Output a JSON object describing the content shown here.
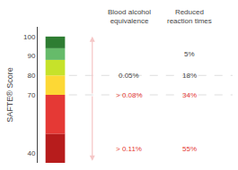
{
  "chart_data": {
    "type": "bar",
    "ylabel": "SAFTE® Score",
    "ylim": [
      35,
      105
    ],
    "yticks": [
      40,
      70,
      80,
      90,
      100
    ],
    "grid": false,
    "tick_labels": "y",
    "series": [
      {
        "ymin": 35,
        "ymax": 50,
        "color": "#b71c1c"
      },
      {
        "ymin": 50,
        "ymax": 70,
        "color": "#e53935"
      },
      {
        "ymin": 70,
        "ymax": 80,
        "color": "#fdd835"
      },
      {
        "ymin": 80,
        "ymax": 88,
        "color": "#c6e22a"
      },
      {
        "ymin": 88,
        "ymax": 94,
        "color": "#66bb6a"
      },
      {
        "ymin": 94,
        "ymax": 100,
        "color": "#2e7d32"
      }
    ],
    "column_headers": [
      "Blood alcohol\nequivalence",
      "Reduced\nreaction times"
    ],
    "annotations": [
      {
        "y": 91,
        "texts": [
          null,
          "5%"
        ]
      },
      {
        "y": 80,
        "texts": [
          "0.05%",
          "18%"
        ]
      },
      {
        "y": 70,
        "texts": [
          "> 0.08%",
          "34%"
        ],
        "color": "#e53935"
      },
      {
        "y": 42,
        "texts": [
          "> 0.11%",
          "55%"
        ],
        "color": "#e53935"
      }
    ],
    "arrow": {
      "from": 70,
      "to": [
        100,
        36
      ],
      "color": "#f5c6c6"
    },
    "hlines": {
      "values": [
        70,
        80
      ],
      "color": "#dddddd"
    }
  }
}
